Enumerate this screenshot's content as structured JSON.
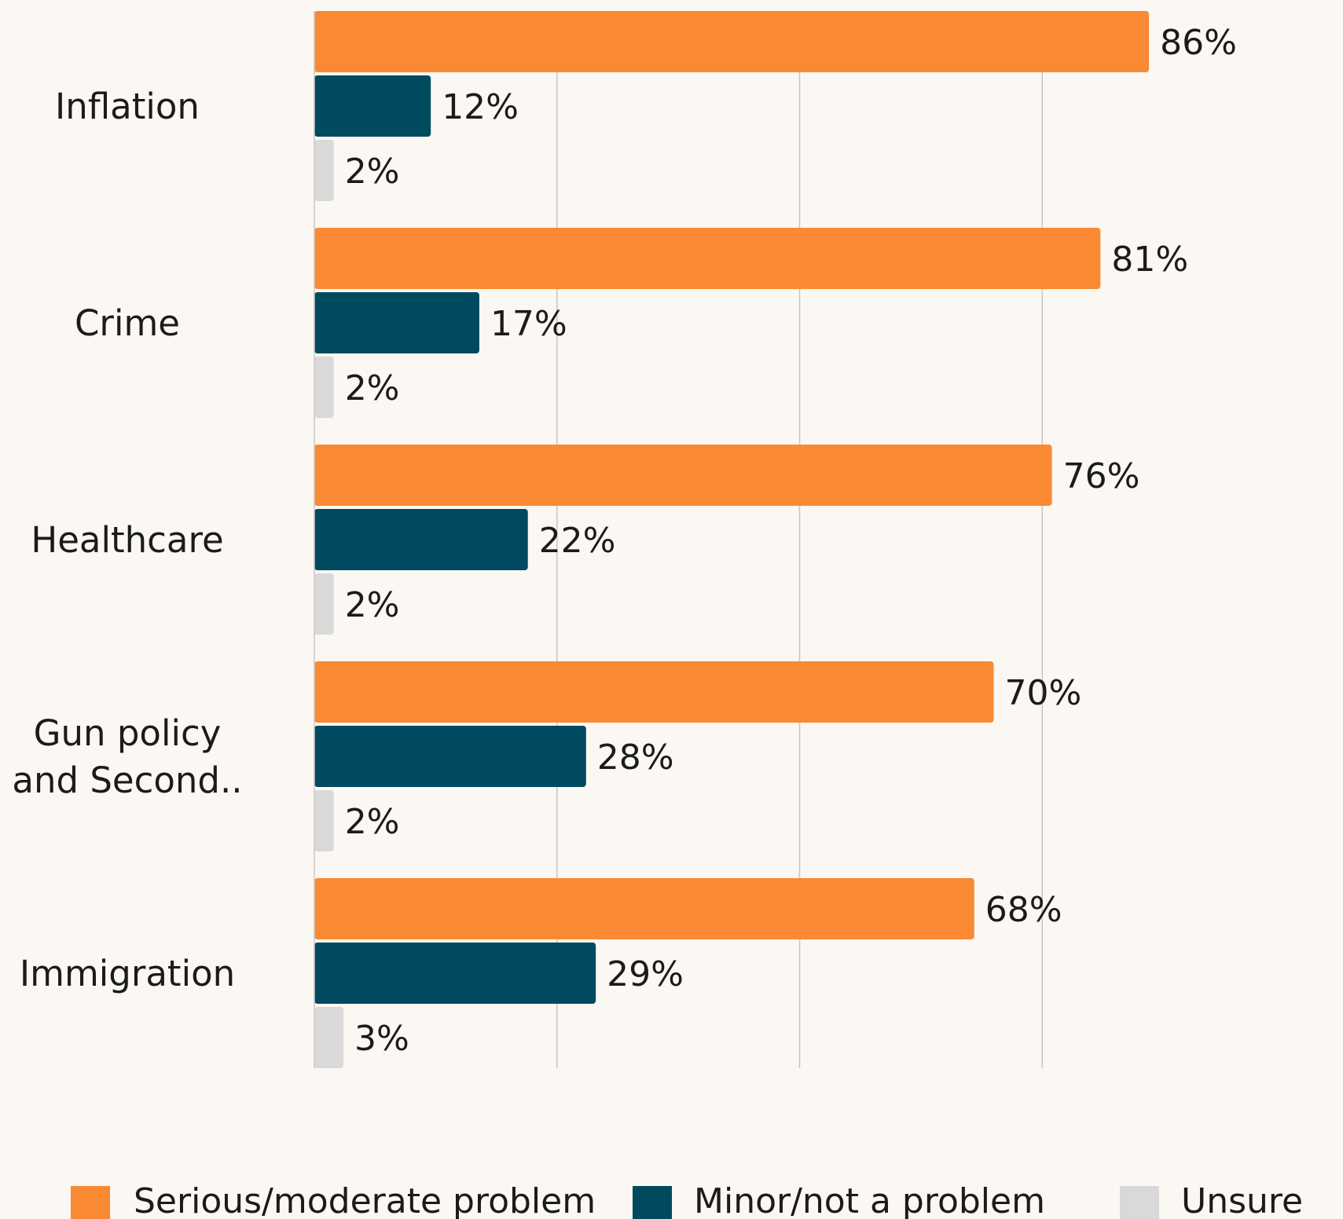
{
  "chart_data": {
    "type": "bar",
    "orientation": "horizontal",
    "categories": [
      [
        "Inflation"
      ],
      [
        "Crime"
      ],
      [
        "Healthcare"
      ],
      [
        "Gun policy",
        "and Second.."
      ],
      [
        "Immigration"
      ]
    ],
    "series": [
      {
        "name": "Serious/moderate problem",
        "color": "#f98a33",
        "values": [
          86,
          81,
          76,
          70,
          68
        ],
        "labels": [
          "86%",
          "81%",
          "76%",
          "70%",
          "68%"
        ]
      },
      {
        "name": "Minor/not a problem",
        "color": "#004a5f",
        "values": [
          12,
          17,
          22,
          28,
          29
        ],
        "labels": [
          "12%",
          "17%",
          "22%",
          "28%",
          "29%"
        ]
      },
      {
        "name": "Unsure",
        "color": "#d9d9d9",
        "values": [
          2,
          2,
          2,
          2,
          3
        ],
        "labels": [
          "2%",
          "2%",
          "2%",
          "2%",
          "3%"
        ]
      }
    ],
    "xlim": [
      0,
      100
    ],
    "grid": "vertical",
    "legend_position": "bottom"
  }
}
